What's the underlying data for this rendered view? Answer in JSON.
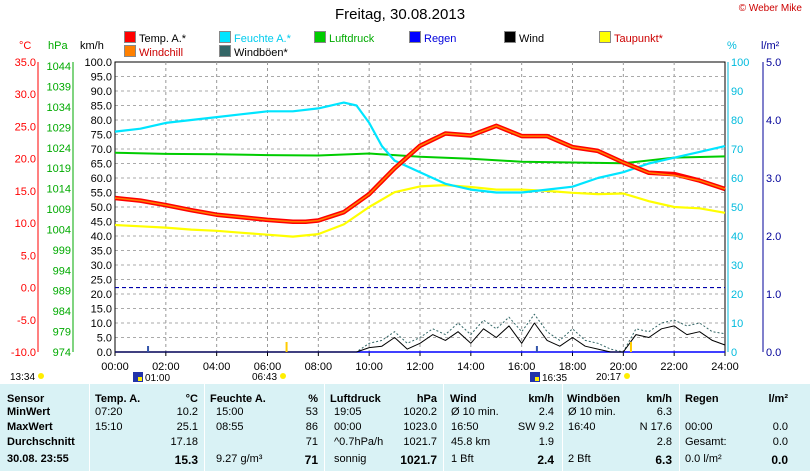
{
  "header": {
    "title": "Freitag, 30.08.2013",
    "credit": "© Weber Mike"
  },
  "legend": [
    {
      "label": "Temp. A.*",
      "color": "#ff0000"
    },
    {
      "label": "Feuchte A.*",
      "color": "#00e5ff"
    },
    {
      "label": "Luftdruck",
      "color": "#00cc00"
    },
    {
      "label": "Regen",
      "color": "#0000ff"
    },
    {
      "label": "Wind",
      "color": "#000000"
    },
    {
      "label": "Taupunkt*",
      "color": "#ffff00"
    },
    {
      "label": "Windchill",
      "color": "#ff8000"
    },
    {
      "label": "Windböen*",
      "color": "#336666"
    }
  ],
  "axis_units": {
    "celsius": "°C",
    "hpa": "hPa",
    "kmh": "km/h",
    "percent": "%",
    "rain": "l/m²"
  },
  "sun": {
    "sunrise_line": "13:34",
    "sunset_line": "06:43",
    "sunrise": "06:43",
    "sunset": "20:17",
    "marker_1": "01:00",
    "marker_2": "16:35"
  },
  "chart_data": {
    "type": "line",
    "title": "Freitag, 30.08.2013",
    "x_ticks": [
      "00:00",
      "02:00",
      "04:00",
      "06:00",
      "08:00",
      "10:00",
      "12:00",
      "14:00",
      "16:00",
      "18:00",
      "20:00",
      "22:00",
      "24:00"
    ],
    "x_range_hours": [
      0,
      24
    ],
    "axes": {
      "celsius": {
        "min": -10,
        "max": 35,
        "ticks": [
          "35.0",
          "30.0",
          "25.0",
          "20.0",
          "15.0",
          "10.0",
          "5.0",
          "0.0",
          "-5.0",
          "-10.0"
        ],
        "color": "#ff0000"
      },
      "hpa": {
        "min": 974,
        "max": 1045,
        "ticks": [
          "1044",
          "1039",
          "1034",
          "1029",
          "1024",
          "1019",
          "1014",
          "1009",
          "1004",
          "999",
          "994",
          "989",
          "984",
          "979",
          "974"
        ],
        "color": "#00aa00"
      },
      "kmh": {
        "min": 0,
        "max": 100,
        "ticks": [
          "100.0",
          "95.0",
          "90.0",
          "85.0",
          "80.0",
          "75.0",
          "70.0",
          "65.0",
          "60.0",
          "55.0",
          "50.0",
          "45.0",
          "40.0",
          "35.0",
          "30.0",
          "25.0",
          "20.0",
          "15.0",
          "10.0",
          "5.0",
          "0.0"
        ],
        "color": "#000000"
      },
      "percent": {
        "min": 0,
        "max": 100,
        "ticks": [
          "100",
          "90",
          "80",
          "70",
          "60",
          "50",
          "40",
          "30",
          "20",
          "10",
          "0"
        ],
        "color": "#00bbdd"
      },
      "rain": {
        "min": 0,
        "max": 5,
        "ticks": [
          "5.0",
          "4.0",
          "3.0",
          "2.0",
          "1.0",
          "0.0"
        ],
        "color": "#000099"
      }
    },
    "grid": true,
    "series": [
      {
        "name": "Temp. A.*",
        "axis": "celsius",
        "color": "#ff0000",
        "x": [
          0,
          1,
          2,
          3,
          4,
          5,
          6,
          7,
          7.5,
          8,
          9,
          10,
          11,
          12,
          13,
          14,
          15,
          16,
          17,
          18,
          19,
          20,
          21,
          22,
          23,
          24
        ],
        "y": [
          13.9,
          13.5,
          12.8,
          12.0,
          11.3,
          10.9,
          10.5,
          10.2,
          10.2,
          10.4,
          11.7,
          14.5,
          18.5,
          22.0,
          23.9,
          23.6,
          25.1,
          23.5,
          23.5,
          21.8,
          21.2,
          19.4,
          17.8,
          17.6,
          16.6,
          15.3
        ]
      },
      {
        "name": "Windchill",
        "axis": "celsius",
        "color": "#ff8000",
        "x": [
          0,
          1,
          2,
          3,
          4,
          5,
          6,
          7,
          7.5,
          8,
          9,
          10,
          11,
          12,
          13,
          14,
          15,
          16,
          17,
          18,
          19,
          20,
          21,
          22,
          23,
          24
        ],
        "y": [
          13.9,
          13.5,
          12.8,
          12.0,
          11.3,
          10.9,
          10.5,
          10.2,
          10.2,
          10.4,
          11.7,
          14.5,
          18.5,
          22.0,
          23.9,
          23.6,
          25.1,
          23.5,
          23.5,
          21.8,
          21.2,
          19.4,
          17.8,
          17.4,
          16.6,
          15.3
        ]
      },
      {
        "name": "Feuchte A.*",
        "axis": "percent",
        "color": "#00e5ff",
        "x": [
          0,
          1,
          2,
          3,
          4,
          5,
          6,
          7,
          8,
          9,
          9.5,
          10,
          10.5,
          11,
          12,
          13,
          14,
          15,
          16,
          17,
          18,
          19,
          20,
          21,
          22,
          23,
          24
        ],
        "y": [
          76,
          77,
          79,
          80,
          81,
          82,
          83,
          83,
          84,
          86,
          85,
          79,
          71,
          66,
          62,
          58,
          56,
          55,
          55,
          56,
          57,
          60,
          62,
          65,
          67,
          69,
          71
        ]
      },
      {
        "name": "Taupunkt*",
        "axis": "celsius",
        "color": "#ffff00",
        "x": [
          0,
          1,
          2,
          3,
          4,
          5,
          6,
          7,
          8,
          9,
          10,
          11,
          12,
          13,
          14,
          15,
          16,
          17,
          18,
          19,
          20,
          21,
          22,
          23,
          24
        ],
        "y": [
          9.7,
          9.5,
          9.3,
          9.0,
          8.8,
          8.5,
          8.2,
          7.9,
          8.3,
          9.8,
          12.5,
          14.8,
          15.7,
          15.9,
          15.6,
          15.2,
          15.2,
          15.0,
          14.7,
          14.5,
          14.6,
          13.4,
          12.5,
          12.3,
          11.6
        ]
      },
      {
        "name": "Luftdruck",
        "axis": "hpa",
        "color": "#00cc00",
        "x": [
          0,
          2,
          4,
          6,
          8,
          10,
          12,
          14,
          16,
          18,
          20,
          22,
          24
        ],
        "y": [
          1022.8,
          1022.5,
          1022.4,
          1022.2,
          1022.1,
          1022.6,
          1021.8,
          1021.3,
          1020.6,
          1020.4,
          1020.2,
          1021.6,
          1021.9
        ]
      },
      {
        "name": "Wind",
        "axis": "kmh",
        "color": "#000000",
        "x": [
          0,
          2,
          4,
          6,
          8,
          9.5,
          10,
          10.5,
          11,
          11.5,
          12,
          12.5,
          13,
          13.5,
          14,
          14.5,
          15,
          15.5,
          16,
          16.5,
          17,
          17.5,
          18,
          18.5,
          19,
          19.5,
          20,
          20.5,
          21,
          21.5,
          22,
          22.5,
          23,
          23.5,
          24
        ],
        "y": [
          0,
          0,
          0,
          0,
          0,
          0,
          1.5,
          2,
          5,
          1,
          3,
          6,
          4,
          7,
          3,
          8,
          5,
          9,
          3,
          10,
          4,
          2,
          5,
          2,
          1,
          0,
          0,
          6,
          5,
          8,
          9,
          6,
          7,
          4,
          2.4
        ]
      },
      {
        "name": "Windböen*",
        "axis": "kmh",
        "color": "#336666",
        "x": [
          0,
          9.5,
          10,
          10.5,
          11,
          11.5,
          12,
          12.5,
          13,
          13.5,
          14,
          14.5,
          15,
          15.5,
          16,
          16.5,
          17,
          17.5,
          18,
          18.5,
          19,
          19.5,
          20,
          20.5,
          21,
          21.5,
          22,
          22.5,
          23,
          23.5,
          24
        ],
        "y": [
          0,
          0,
          3,
          4,
          7,
          3,
          5,
          8,
          6,
          10,
          6,
          11,
          8,
          12,
          7,
          13,
          7,
          4,
          8,
          4,
          3,
          1,
          0,
          8,
          7,
          10,
          11,
          9,
          10,
          7,
          6.3
        ]
      },
      {
        "name": "Regen",
        "axis": "rain",
        "color": "#0000ff",
        "x": [
          0,
          24
        ],
        "y": [
          0,
          0
        ]
      }
    ]
  },
  "stats": {
    "headers": [
      "Sensor",
      "Temp. A.",
      "°C",
      "Feuchte A.",
      "%",
      "Luftdruck",
      "hPa",
      "Wind",
      "km/h",
      "Windböen",
      "km/h",
      "Regen",
      "l/m²"
    ],
    "rows": [
      {
        "label": "MinWert",
        "temp_t": "07:20",
        "temp_v": "10.2",
        "hum_t": "15:00",
        "hum_v": "53",
        "press_t": "19:05",
        "press_v": "1020.2",
        "wind_t": "Ø 10 min.",
        "wind_v": "2.4",
        "gust_t": "Ø 10 min.",
        "gust_v": "6.3",
        "rain_t": "",
        "rain_v": ""
      },
      {
        "label": "MaxWert",
        "temp_t": "15:10",
        "temp_v": "25.1",
        "hum_t": "08:55",
        "hum_v": "86",
        "press_t": "00:00",
        "press_v": "1023.0",
        "wind_t": "16:50",
        "wind_v": "SW 9.2",
        "gust_t": "16:40",
        "gust_v": "N 17.6",
        "rain_t": "00:00",
        "rain_v": "0.0"
      },
      {
        "label": "Durchschnitt",
        "temp_t": "",
        "temp_v": "17.18",
        "hum_t": "",
        "hum_v": "71",
        "press_t": "^0.7hPa/h",
        "press_v": "1021.7",
        "wind_t": "45.8 km",
        "wind_v": "1.9",
        "gust_t": "",
        "gust_v": "2.8",
        "rain_t": "Gesamt:",
        "rain_v": "0.0"
      },
      {
        "label": "30.08. 23:55",
        "temp_t": "",
        "temp_v": "15.3",
        "hum_t": "9.27 g/m³",
        "hum_v": "71",
        "press_t": "sonnig",
        "press_v": "1021.7",
        "wind_t": "1 Bft",
        "wind_v": "2.4",
        "gust_t": "2 Bft",
        "gust_v": "6.3",
        "rain_t": "0.0 l/m²",
        "rain_v": "0.0"
      }
    ]
  }
}
